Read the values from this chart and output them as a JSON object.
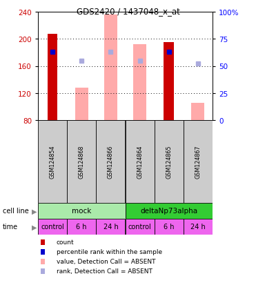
{
  "title": "GDS2420 / 1437048_x_at",
  "samples": [
    "GSM124854",
    "GSM124868",
    "GSM124866",
    "GSM124864",
    "GSM124865",
    "GSM124867"
  ],
  "time": [
    "control",
    "6 h",
    "24 h",
    "control",
    "6 h",
    "24 h"
  ],
  "count_values": [
    207,
    null,
    null,
    null,
    195,
    null
  ],
  "count_color": "#cc0000",
  "rank_values": [
    63,
    null,
    null,
    null,
    63,
    null
  ],
  "rank_color": "#0000cc",
  "value_absent": [
    null,
    128,
    236,
    192,
    null,
    105
  ],
  "value_absent_color": "#ffaaaa",
  "rank_absent": [
    null,
    55,
    63,
    55,
    null,
    52
  ],
  "rank_absent_color": "#aaaadd",
  "ylim_left": [
    80,
    240
  ],
  "ylim_right": [
    0,
    100
  ],
  "yticks_left": [
    80,
    120,
    160,
    200,
    240
  ],
  "yticks_right": [
    0,
    25,
    50,
    75,
    100
  ],
  "ytick_labels_right": [
    "0",
    "25",
    "50",
    "75",
    "100%"
  ],
  "mock_color": "#aaeaaa",
  "delta_color": "#33cc33",
  "time_color": "#ee66ee",
  "sample_bg": "#cccccc",
  "legend_items": [
    {
      "label": "count",
      "color": "#cc0000"
    },
    {
      "label": "percentile rank within the sample",
      "color": "#0000cc"
    },
    {
      "label": "value, Detection Call = ABSENT",
      "color": "#ffaaaa"
    },
    {
      "label": "rank, Detection Call = ABSENT",
      "color": "#aaaadd"
    }
  ],
  "n_samples": 6,
  "cell_line_label": "cell line",
  "time_label": "time"
}
